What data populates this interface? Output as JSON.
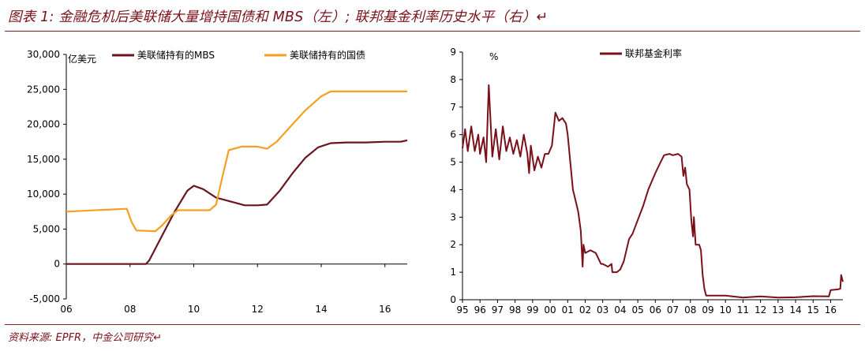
{
  "header": {
    "title": "图表 1: 金融危机后美联储大量增持国债和 MBS（左）; 联邦基金利率历史水平（右）↵"
  },
  "footer": {
    "source": "资料来源: EPFR，中金公司研究↵"
  },
  "chart_data": [
    {
      "type": "line",
      "title": "",
      "unit_label": "亿美元",
      "xlabel": "",
      "ylabel": "",
      "ylim": [
        -5000,
        30000
      ],
      "yticks": [
        -5000,
        0,
        5000,
        10000,
        15000,
        20000,
        25000,
        30000
      ],
      "ytick_labels": [
        "-5,000",
        "0",
        "5,000",
        "10,000",
        "15,000",
        "20,000",
        "25,000",
        "30,000"
      ],
      "xlim": [
        2006,
        2016.7
      ],
      "xticks": [
        2006,
        2008,
        2010,
        2012,
        2014,
        2016
      ],
      "xtick_labels": [
        "06",
        "08",
        "10",
        "12",
        "14",
        "16"
      ],
      "grid": false,
      "legend_position": "top",
      "series": [
        {
          "name": "美联储持有的MBS",
          "color": "#6b1420",
          "x": [
            2006,
            2008.5,
            2008.6,
            2009.0,
            2009.4,
            2009.8,
            2010.0,
            2010.3,
            2010.7,
            2011.2,
            2011.6,
            2012.0,
            2012.3,
            2012.7,
            2013.1,
            2013.5,
            2013.9,
            2014.3,
            2014.8,
            2015.4,
            2016.0,
            2016.5,
            2016.7
          ],
          "values": [
            0,
            0,
            500,
            4000,
            7500,
            10500,
            11200,
            10700,
            9500,
            8900,
            8400,
            8400,
            8500,
            10500,
            13000,
            15200,
            16700,
            17300,
            17400,
            17400,
            17500,
            17500,
            17700
          ]
        },
        {
          "name": "美联储持有的国债",
          "color": "#f5a020",
          "x": [
            2006,
            2007.4,
            2007.9,
            2008.05,
            2008.2,
            2008.8,
            2009.0,
            2009.3,
            2009.5,
            2009.8,
            2010.5,
            2010.7,
            2010.9,
            2011.1,
            2011.5,
            2012.0,
            2012.3,
            2012.6,
            2013.0,
            2013.5,
            2014.0,
            2014.3,
            2014.8,
            2015.5,
            2016.7
          ],
          "values": [
            7500,
            7800,
            7900,
            6000,
            4800,
            4700,
            5500,
            7000,
            7700,
            7700,
            7700,
            8500,
            12500,
            16300,
            16800,
            16800,
            16500,
            17500,
            19500,
            22000,
            24000,
            24700,
            24700,
            24700,
            24700
          ]
        }
      ]
    },
    {
      "type": "line",
      "title": "",
      "unit_label": "%",
      "xlabel": "",
      "ylabel": "",
      "ylim": [
        0,
        9
      ],
      "yticks": [
        0,
        1,
        2,
        3,
        4,
        5,
        6,
        7,
        8,
        9
      ],
      "ytick_labels": [
        "0",
        "1",
        "2",
        "3",
        "4",
        "5",
        "6",
        "7",
        "8",
        "9"
      ],
      "xlim": [
        1995,
        2016.7
      ],
      "xticks": [
        1995,
        1996,
        1997,
        1998,
        1999,
        2000,
        2001,
        2002,
        2003,
        2004,
        2005,
        2006,
        2007,
        2008,
        2009,
        2010,
        2011,
        2012,
        2013,
        2014,
        2015,
        2016
      ],
      "xtick_labels": [
        "95",
        "96",
        "97",
        "98",
        "99",
        "00",
        "01",
        "02",
        "03",
        "04",
        "05",
        "06",
        "07",
        "08",
        "09",
        "10",
        "11",
        "12",
        "13",
        "14",
        "15",
        "16"
      ],
      "grid": false,
      "legend_position": "top",
      "series": [
        {
          "name": "联邦基金利率",
          "color": "#7a1019",
          "x": [
            1995.0,
            1995.15,
            1995.3,
            1995.5,
            1995.7,
            1995.9,
            1996.0,
            1996.2,
            1996.35,
            1996.5,
            1996.7,
            1996.9,
            1997.1,
            1997.3,
            1997.5,
            1997.7,
            1997.9,
            1998.1,
            1998.3,
            1998.5,
            1998.7,
            1998.8,
            1998.9,
            1999.1,
            1999.3,
            1999.5,
            1999.7,
            1999.9,
            2000.1,
            2000.3,
            2000.5,
            2000.7,
            2000.9,
            2001.0,
            2001.15,
            2001.3,
            2001.45,
            2001.6,
            2001.75,
            2001.85,
            2001.9,
            2002.0,
            2002.3,
            2002.6,
            2002.9,
            2003.0,
            2003.3,
            2003.5,
            2003.55,
            2003.8,
            2004.0,
            2004.2,
            2004.5,
            2004.7,
            2005.0,
            2005.3,
            2005.6,
            2006.0,
            2006.3,
            2006.5,
            2006.8,
            2007.0,
            2007.3,
            2007.5,
            2007.6,
            2007.7,
            2007.8,
            2007.95,
            2008.05,
            2008.15,
            2008.2,
            2008.3,
            2008.5,
            2008.6,
            2008.7,
            2008.8,
            2008.9,
            2009.0,
            2010.0,
            2011.0,
            2012.0,
            2013.0,
            2014.0,
            2015.0,
            2015.9,
            2016.0,
            2016.3,
            2016.45,
            2016.55,
            2016.6,
            2016.7
          ],
          "values": [
            5.5,
            6.2,
            5.4,
            6.3,
            5.4,
            6.0,
            5.3,
            5.9,
            5.0,
            7.8,
            5.2,
            6.2,
            5.1,
            6.3,
            5.4,
            5.9,
            5.3,
            5.8,
            5.2,
            6.0,
            5.3,
            4.6,
            5.6,
            4.7,
            5.2,
            4.8,
            5.3,
            5.3,
            5.6,
            6.8,
            6.5,
            6.6,
            6.4,
            6.0,
            5.0,
            4.0,
            3.6,
            3.2,
            2.5,
            1.2,
            2.0,
            1.7,
            1.8,
            1.7,
            1.3,
            1.3,
            1.2,
            1.3,
            1.0,
            1.0,
            1.1,
            1.4,
            2.2,
            2.4,
            2.9,
            3.4,
            4.0,
            4.6,
            5.0,
            5.25,
            5.3,
            5.25,
            5.3,
            5.2,
            4.5,
            4.8,
            4.2,
            4.0,
            2.9,
            2.3,
            3.0,
            2.0,
            2.0,
            1.8,
            0.9,
            0.4,
            0.15,
            0.15,
            0.15,
            0.08,
            0.12,
            0.08,
            0.09,
            0.13,
            0.12,
            0.35,
            0.37,
            0.38,
            0.4,
            0.9,
            0.65
          ]
        }
      ]
    }
  ]
}
